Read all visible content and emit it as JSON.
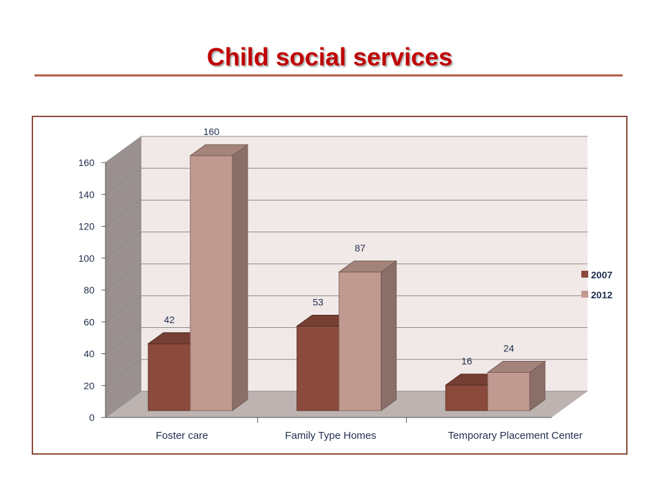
{
  "slide": {
    "title": "Child social services"
  },
  "colors": {
    "title": "#c00000",
    "series_2007": "#8b4a3c",
    "series_2012": "#c09a90",
    "frame": "#8b4a3c"
  },
  "chart_data": {
    "type": "bar",
    "style": "3d clustered column",
    "categories": [
      "Foster care",
      "Family Type Homes",
      "Temporary Placement Center"
    ],
    "series": [
      {
        "name": "2007",
        "values": [
          42,
          53,
          16
        ]
      },
      {
        "name": "2012",
        "values": [
          160,
          87,
          24
        ]
      }
    ],
    "y_ticks": [
      "0",
      "20",
      "40",
      "60",
      "80",
      "100",
      "120",
      "140",
      "160"
    ],
    "ylim": [
      0,
      160
    ],
    "grid": true,
    "legend": "right",
    "data_labels": true
  }
}
